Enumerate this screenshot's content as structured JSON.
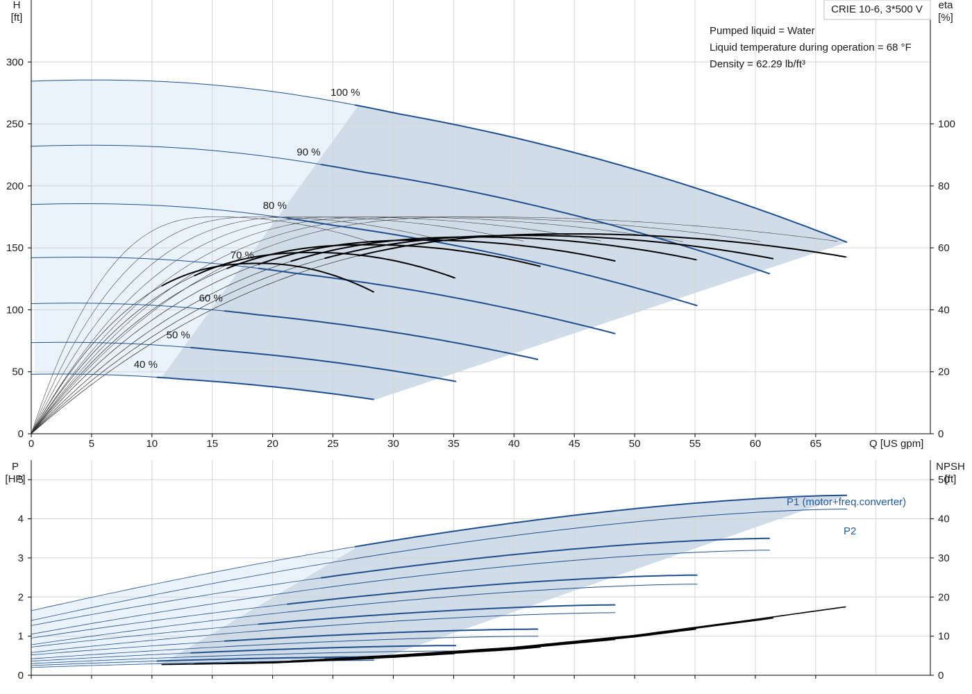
{
  "model": "CRIE 10-6, 3*500 V",
  "info_lines": [
    "Pumped liquid = Water",
    "Liquid temperature during operation = 68 °F",
    "Density = 62.29 lb/ft³"
  ],
  "colors": {
    "curve_blue": "#1f4e8c",
    "region_fill": "#d0dde9",
    "light_fill": "#eaf3fb",
    "grid": "#d4d4d4",
    "eta_black": "#000000"
  },
  "chart_data": [
    {
      "type": "line",
      "panel": "head_efficiency",
      "xlabel": "Q [US gpm]",
      "ylabel_left": [
        "H",
        "[ft]"
      ],
      "ylabel_right": [
        "eta",
        "[%]"
      ],
      "xlim": [
        0,
        74.5
      ],
      "ylim_left": [
        0,
        350
      ],
      "ylim_right": [
        0,
        140
      ],
      "xticks": [
        0,
        5,
        10,
        15,
        20,
        25,
        30,
        35,
        40,
        45,
        50,
        55,
        60,
        65
      ],
      "yticks_left": [
        0,
        50,
        100,
        150,
        200,
        250,
        300
      ],
      "yticks_right": [
        0,
        20,
        40,
        60,
        80,
        100
      ],
      "grid": true,
      "head_curves": [
        {
          "name": "100 %",
          "Q_end": 67.6,
          "H_start": 284.5,
          "H_shutoff_max": 284.5,
          "H_end": 154.5,
          "Q_pct": 27.1
        },
        {
          "name": "90 %",
          "Q_end": 61.5,
          "H_start": 232,
          "H_end": 128,
          "Q_pct": 24.3
        },
        {
          "name": "80 %",
          "Q_end": 55.3,
          "H_start": 185,
          "H_end": 103,
          "Q_pct": 21.5
        },
        {
          "name": "70 %",
          "Q_end": 48.7,
          "H_start": 142,
          "H_end": 80,
          "Q_pct": 18.8
        },
        {
          "name": "60 %",
          "Q_end": 42.2,
          "H_start": 105,
          "H_end": 59.5,
          "Q_pct": 16.2
        },
        {
          "name": "50 %",
          "Q_end": 35.3,
          "H_start": 73.5,
          "H_end": 42,
          "Q_pct": 13.5
        },
        {
          "name": "40 %",
          "Q_end": 28.5,
          "H_start": 48,
          "H_end": 27.5,
          "Q_pct": 10.8
        }
      ],
      "eta_curves": [
        {
          "speed": "100 %",
          "Q_end": 67.6,
          "Q_peak": 45,
          "eta_peak": 64.5,
          "eta_end": 57
        },
        {
          "speed": "90 %",
          "Q_end": 61.5,
          "Q_peak": 41,
          "eta_peak": 64,
          "eta_end": 56.5
        },
        {
          "speed": "80 %",
          "Q_end": 55.3,
          "Q_peak": 37,
          "eta_peak": 63.5,
          "eta_end": 56
        },
        {
          "speed": "70 %",
          "Q_end": 48.7,
          "Q_peak": 32.5,
          "eta_peak": 62.5,
          "eta_end": 55.5
        },
        {
          "speed": "60 %",
          "Q_end": 42.2,
          "Q_peak": 28,
          "eta_peak": 61,
          "eta_end": 54
        },
        {
          "speed": "50 %",
          "Q_end": 35.3,
          "Q_peak": 23.5,
          "eta_peak": 58.5,
          "eta_end": 50
        },
        {
          "speed": "40 %",
          "Q_end": 28.5,
          "Q_peak": 19,
          "eta_peak": 55,
          "eta_end": 45.5
        }
      ]
    },
    {
      "type": "line",
      "panel": "power_npsh",
      "xlabel": "",
      "ylabel_left": [
        "P",
        "[HP]"
      ],
      "ylabel_right": [
        "NPSH",
        "[ft]"
      ],
      "xlim": [
        0,
        74.5
      ],
      "ylim_left": [
        0,
        5.5
      ],
      "ylim_right": [
        0,
        55
      ],
      "yticks_left": [
        0,
        1,
        2,
        3,
        4,
        5
      ],
      "yticks_right": [
        0,
        10,
        20,
        30,
        40,
        50
      ],
      "grid": true,
      "series_labels": [
        "P1 (motor+freq.converter)",
        "P2"
      ],
      "power_curves": [
        {
          "speed": "100 %",
          "Q_end": 67.6,
          "P1_start": 1.65,
          "P1_end": 4.6,
          "P2_start": 1.4,
          "P2_end": 4.25
        },
        {
          "speed": "90 %",
          "Q_end": 61.5,
          "P1_start": 1.27,
          "P1_end": 3.5,
          "P2_start": 1.05,
          "P2_end": 3.2
        },
        {
          "speed": "80 %",
          "Q_end": 55.3,
          "P1_start": 0.95,
          "P1_end": 2.56,
          "P2_start": 0.78,
          "P2_end": 2.33
        },
        {
          "speed": "70 %",
          "Q_end": 48.7,
          "P1_start": 0.72,
          "P1_end": 1.8,
          "P2_start": 0.58,
          "P2_end": 1.6
        },
        {
          "speed": "60 %",
          "Q_end": 42.2,
          "P1_start": 0.52,
          "P1_end": 1.18,
          "P2_start": 0.42,
          "P2_end": 1.0
        },
        {
          "speed": "50 %",
          "Q_end": 35.3,
          "P1_start": 0.36,
          "P1_end": 0.76,
          "P2_start": 0.3,
          "P2_end": 0.62
        },
        {
          "speed": "40 %",
          "Q_end": 28.5,
          "P1_start": 0.25,
          "P1_end": 0.47,
          "P2_start": 0.2,
          "P2_end": 0.38
        }
      ],
      "npsh_curve": {
        "x": [
          0,
          10,
          20,
          30,
          40,
          50,
          55,
          60,
          67.6
        ],
        "y": [
          3,
          3,
          3.5,
          5,
          7,
          10,
          12,
          14,
          17.2
        ]
      }
    }
  ]
}
